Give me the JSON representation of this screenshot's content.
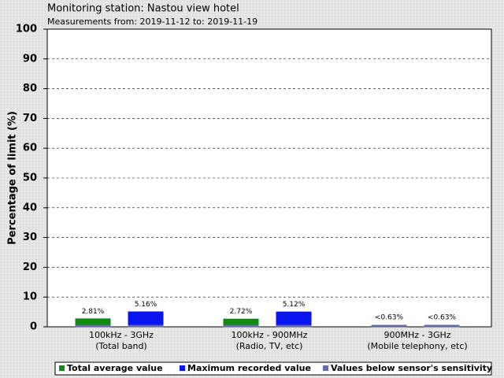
{
  "chart_data": {
    "type": "bar",
    "title": "Monitoring station: Nastou view hotel",
    "subtitle": "Measurements from: 2019-11-12 to: 2019-11-19",
    "y_label": "Percentage of limit (%)",
    "categories": [
      "100kHz - 3GHz\n(Total band)",
      "100kHz - 900MHz\n(Radio, TV, etc)",
      "900MHz - 3GHz\n(Mobile telephony, etc)"
    ],
    "series": [
      {
        "name": "Total average value",
        "color": "#118811",
        "values": [
          2.81,
          2.72,
          0.63
        ],
        "value_labels": [
          "2.81%",
          "2.72%",
          "<0.63%"
        ]
      },
      {
        "name": "Maximum recorded value",
        "color": "#0a14f0",
        "values": [
          5.16,
          5.12,
          0.63
        ],
        "value_labels": [
          "5.16%",
          "5.12%",
          "<0.63%"
        ]
      },
      {
        "name": "Values below sensor's sensitivity",
        "color": "#6a6aa8",
        "values": [
          0.63,
          0.63,
          0.63
        ]
      }
    ],
    "ylim": [
      0,
      100
    ],
    "yticks": [
      0,
      10,
      20,
      30,
      40,
      50,
      60,
      70,
      80,
      90,
      100
    ],
    "grid": true
  }
}
